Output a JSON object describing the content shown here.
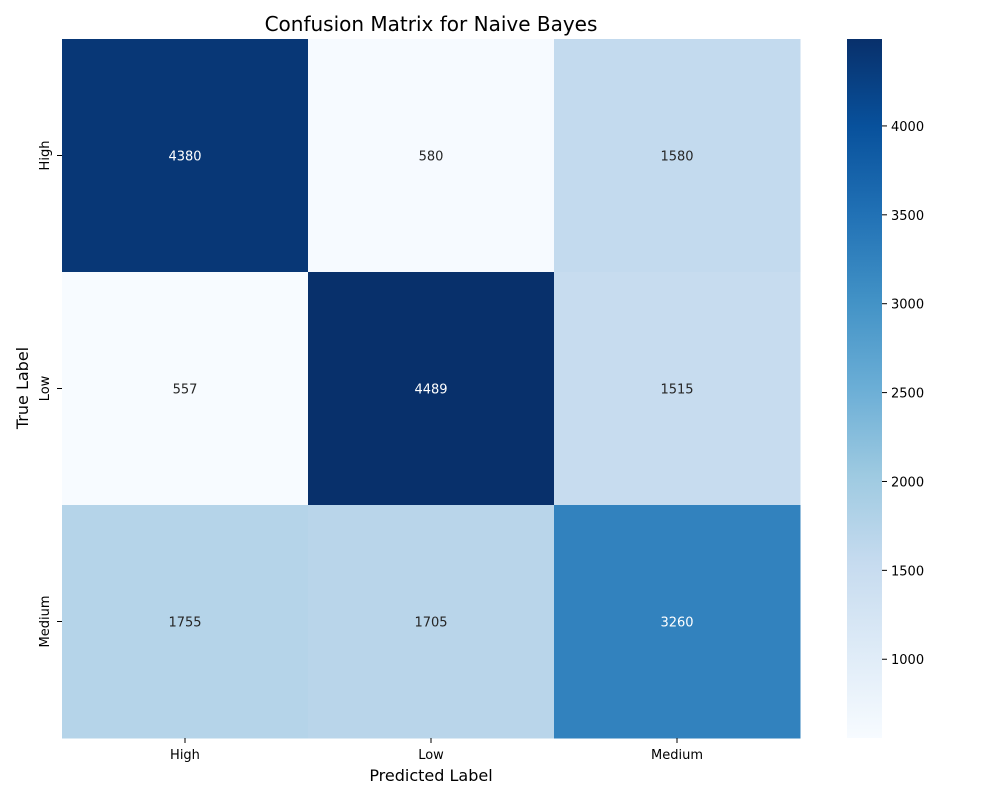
{
  "chart_data": {
    "type": "heatmap",
    "title": "Confusion Matrix for Naive Bayes",
    "xlabel": "Predicted Label",
    "ylabel": "True Label",
    "x_categories": [
      "High",
      "Low",
      "Medium"
    ],
    "y_categories": [
      "High",
      "Low",
      "Medium"
    ],
    "values": [
      [
        4380,
        580,
        1580
      ],
      [
        557,
        4489,
        1515
      ],
      [
        1755,
        1705,
        3260
      ]
    ],
    "colorbar": {
      "range": [
        557,
        4489
      ],
      "ticks": [
        1000,
        1500,
        2000,
        2500,
        3000,
        3500,
        4000
      ],
      "colormap": [
        "#f7fbff",
        "#deebf7",
        "#c6dbef",
        "#9ecae1",
        "#6baed6",
        "#4292c6",
        "#2171b5",
        "#08519c",
        "#08306b"
      ]
    }
  }
}
